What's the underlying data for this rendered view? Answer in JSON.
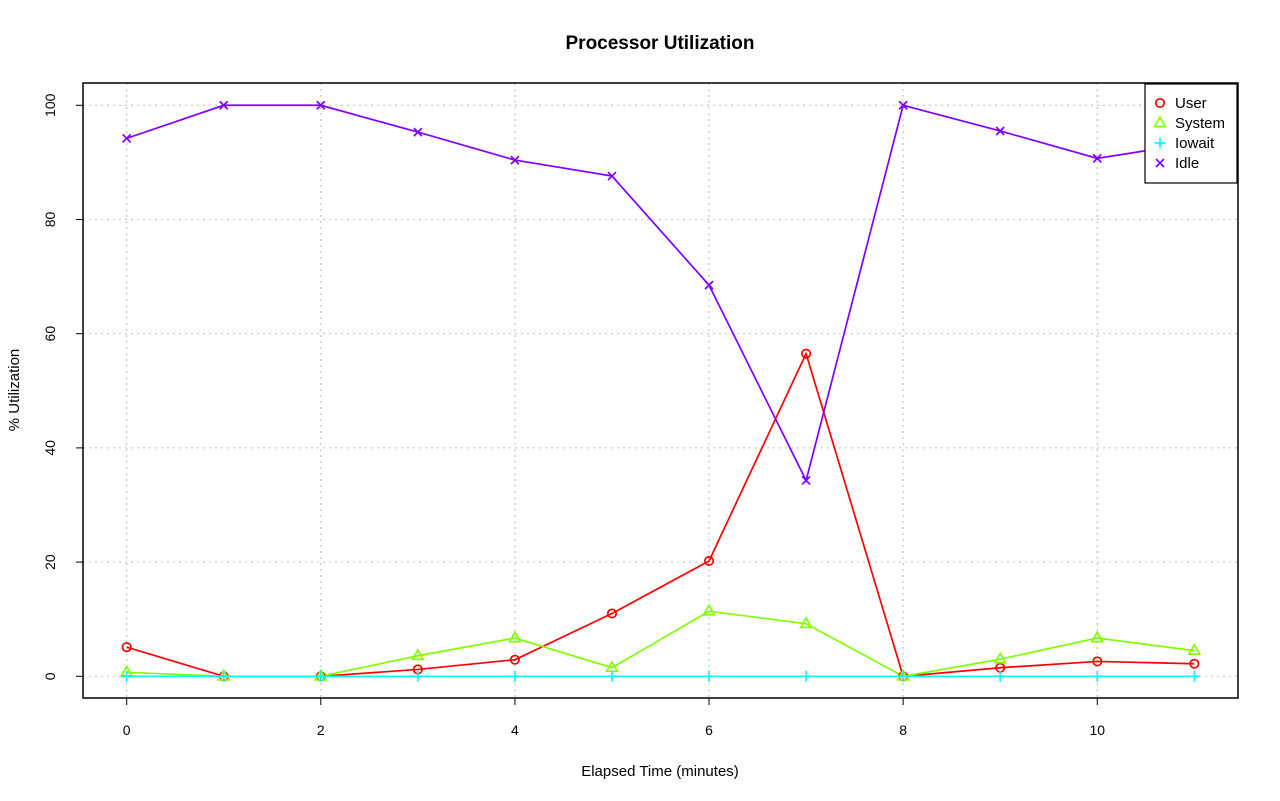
{
  "chart_data": {
    "type": "line",
    "title": "Processor Utilization",
    "xlabel": "Elapsed Time (minutes)",
    "ylabel": "% Utilization",
    "x": [
      0,
      1,
      2,
      3,
      4,
      5,
      6,
      7,
      8,
      9,
      10,
      11
    ],
    "xlim": [
      -0.45,
      11.45
    ],
    "ylim": [
      -3.8,
      103.9
    ],
    "xticks": [
      0,
      2,
      4,
      6,
      8,
      10
    ],
    "yticks": [
      0,
      20,
      40,
      60,
      80,
      100
    ],
    "xtick_labels": [
      "0",
      "2",
      "4",
      "6",
      "8",
      "10"
    ],
    "ytick_labels": [
      "0",
      "20",
      "40",
      "60",
      "80",
      "100"
    ],
    "grid": true,
    "legend_position": "top-right",
    "series": [
      {
        "name": "User",
        "color": "#ff0000",
        "marker": "circle",
        "values": [
          5.1,
          0,
          0,
          1.2,
          2.9,
          11.0,
          20.2,
          56.5,
          0,
          1.5,
          2.6,
          2.2
        ]
      },
      {
        "name": "System",
        "color": "#80ff00",
        "marker": "triangle",
        "values": [
          0.7,
          0,
          0,
          3.6,
          6.7,
          1.5,
          11.4,
          9.2,
          0,
          3.0,
          6.7,
          4.5
        ]
      },
      {
        "name": "Iowait",
        "color": "#00ffff",
        "marker": "plus",
        "values": [
          0,
          0,
          0,
          0,
          0,
          0,
          0,
          0,
          0,
          0,
          0,
          0
        ]
      },
      {
        "name": "Idle",
        "color": "#8000ff",
        "marker": "cross",
        "values": [
          94.2,
          100,
          100,
          95.3,
          90.4,
          87.6,
          68.5,
          34.3,
          100,
          95.5,
          90.7,
          93.4
        ]
      }
    ]
  }
}
